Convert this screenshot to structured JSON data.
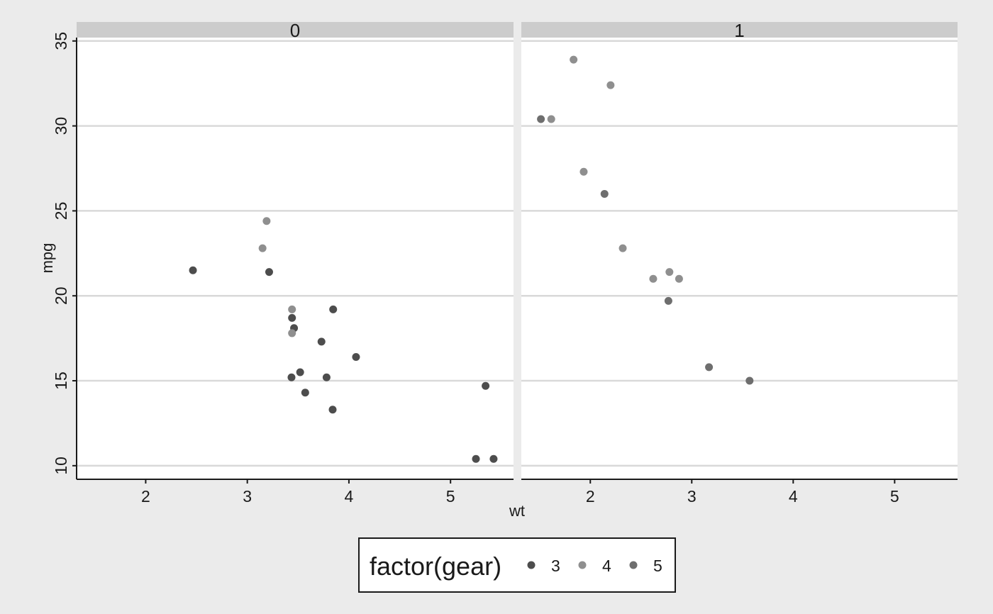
{
  "chart_data": {
    "type": "scatter",
    "facet_variable": "am",
    "xlabel": "wt",
    "ylabel": "mpg",
    "xlim": [
      1.32,
      5.62
    ],
    "ylim": [
      9.2,
      35.2
    ],
    "x_ticks": [
      2,
      3,
      4,
      5
    ],
    "y_ticks": [
      10,
      15,
      20,
      25,
      30,
      35
    ],
    "grid": "horizontal",
    "legend": {
      "title": "factor(gear)",
      "position": "bottom",
      "items": [
        {
          "label": "3",
          "color": "#4d4d4d"
        },
        {
          "label": "4",
          "color": "#8f8f8f"
        },
        {
          "label": "5",
          "color": "#6e6e6e"
        }
      ]
    },
    "colors": {
      "background": "#ebebeb",
      "panel": "#ffffff",
      "strip": "#cccccc",
      "grid": "#d9d9d9",
      "axis": "#1a1a1a"
    },
    "panels": [
      {
        "label": "0",
        "points": [
          {
            "x": 2.465,
            "y": 21.5,
            "gear": "3"
          },
          {
            "x": 3.215,
            "y": 21.4,
            "gear": "3"
          },
          {
            "x": 3.44,
            "y": 18.7,
            "gear": "3"
          },
          {
            "x": 3.46,
            "y": 18.1,
            "gear": "3"
          },
          {
            "x": 3.57,
            "y": 14.3,
            "gear": "3"
          },
          {
            "x": 4.07,
            "y": 16.4,
            "gear": "3"
          },
          {
            "x": 3.73,
            "y": 17.3,
            "gear": "3"
          },
          {
            "x": 3.78,
            "y": 15.2,
            "gear": "3"
          },
          {
            "x": 5.25,
            "y": 10.4,
            "gear": "3"
          },
          {
            "x": 5.424,
            "y": 10.4,
            "gear": "3"
          },
          {
            "x": 5.345,
            "y": 14.7,
            "gear": "3"
          },
          {
            "x": 3.52,
            "y": 15.5,
            "gear": "3"
          },
          {
            "x": 3.435,
            "y": 15.2,
            "gear": "3"
          },
          {
            "x": 3.84,
            "y": 13.3,
            "gear": "3"
          },
          {
            "x": 3.845,
            "y": 19.2,
            "gear": "3"
          },
          {
            "x": 3.19,
            "y": 24.4,
            "gear": "4"
          },
          {
            "x": 3.15,
            "y": 22.8,
            "gear": "4"
          },
          {
            "x": 3.44,
            "y": 19.2,
            "gear": "4"
          },
          {
            "x": 3.44,
            "y": 17.8,
            "gear": "4"
          }
        ]
      },
      {
        "label": "1",
        "points": [
          {
            "x": 2.62,
            "y": 21.0,
            "gear": "4"
          },
          {
            "x": 2.875,
            "y": 21.0,
            "gear": "4"
          },
          {
            "x": 2.32,
            "y": 22.8,
            "gear": "4"
          },
          {
            "x": 2.2,
            "y": 32.4,
            "gear": "4"
          },
          {
            "x": 1.615,
            "y": 30.4,
            "gear": "4"
          },
          {
            "x": 1.835,
            "y": 33.9,
            "gear": "4"
          },
          {
            "x": 1.935,
            "y": 27.3,
            "gear": "4"
          },
          {
            "x": 2.78,
            "y": 21.4,
            "gear": "4"
          },
          {
            "x": 2.14,
            "y": 26.0,
            "gear": "5"
          },
          {
            "x": 1.513,
            "y": 30.4,
            "gear": "5"
          },
          {
            "x": 3.17,
            "y": 15.8,
            "gear": "5"
          },
          {
            "x": 2.77,
            "y": 19.7,
            "gear": "5"
          },
          {
            "x": 3.57,
            "y": 15.0,
            "gear": "5"
          }
        ]
      }
    ]
  }
}
